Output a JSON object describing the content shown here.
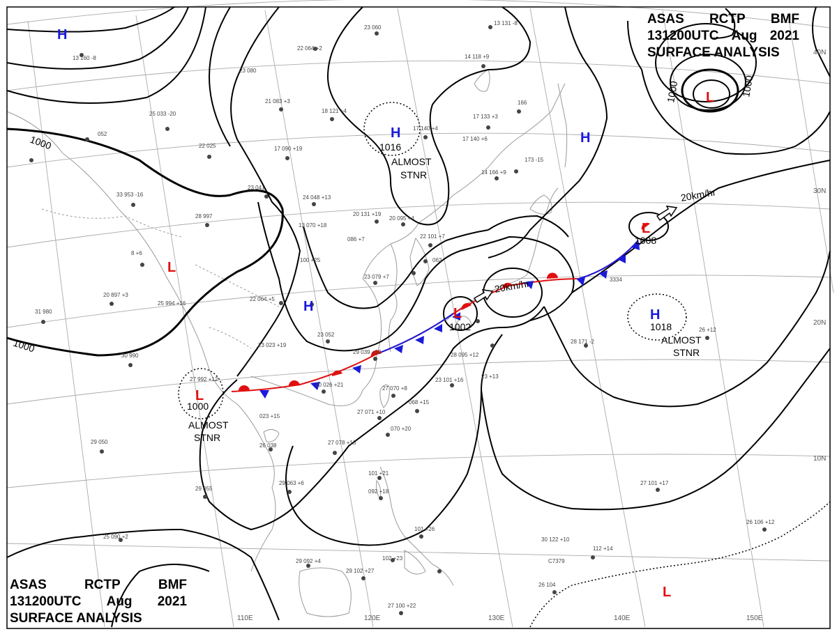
{
  "title": {
    "agency": "ASAS",
    "station": "RCTP",
    "office": "BMF",
    "time": "131200UTC",
    "month": "Aug",
    "year": "2021",
    "product": "SURFACE ANALYSIS"
  },
  "colors": {
    "high": "#1a1adb",
    "low": "#e01010",
    "front_cold": "#1a1adb",
    "front_warm": "#e01010",
    "isobar": "#000000",
    "coast": "#9a9a9a",
    "grid": "#aaaaaa"
  },
  "lon_labels": [
    "110E",
    "120E",
    "130E",
    "140E",
    "150E"
  ],
  "lat_labels": [
    "40N",
    "30N",
    "20N",
    "10N"
  ],
  "isobar_labels": [
    "1000",
    "1000",
    "1000",
    "1000",
    "1000"
  ],
  "pressure_centers": [
    {
      "type": "H",
      "label": "H"
    },
    {
      "type": "H",
      "label": "H"
    },
    {
      "type": "H",
      "label": "H"
    },
    {
      "type": "H",
      "label": "H",
      "value": "1016"
    },
    {
      "type": "H",
      "label": "H",
      "value": "1018"
    },
    {
      "type": "L",
      "label": "L"
    },
    {
      "type": "L",
      "label": "L"
    },
    {
      "type": "L",
      "label": "L",
      "value": "1008"
    },
    {
      "type": "L",
      "label": "L",
      "value": "1000"
    },
    {
      "type": "L",
      "label": "L",
      "value": "1002"
    },
    {
      "type": "L",
      "label": "L"
    }
  ],
  "annotations": {
    "almost_stnr": [
      "ALMOST",
      "STNR"
    ],
    "motion_1": "20km/hr",
    "motion_2": "20km/hr"
  },
  "stations": [
    "13 160 -8",
    "23 060",
    "22 064 +2",
    "13 131 -8",
    "23 080",
    "21 083 +3",
    "18 121 +4",
    "17 140 +4",
    "14 118 +9",
    "17 133 +3",
    "17 140 +6",
    "166",
    "14 166 +9",
    "173 -15",
    "25 033 -20",
    "052",
    "22 025",
    "17 090 +19",
    "23 041",
    "24 048 +13",
    "33 953 -16",
    "28 997",
    "13 070 +18",
    "20 131 +19",
    "20 095 +4",
    "22 101 +7",
    "086 +7",
    "8 +6",
    "100 +25",
    "23 079 +7",
    "062",
    "20 897 +3",
    "25 994 +16",
    "22 064 +5",
    "31 980",
    "30 990",
    "23 023 +19",
    "23 052",
    "29 039 +12",
    "20 026 +21",
    "27 070 +8",
    "3334",
    "28 095 +12",
    "23 101 +16",
    "23 +13",
    "28 171 -2",
    "26 +12",
    "27 992 +12",
    "023 +15",
    "27 071 +10",
    "068 +15",
    "070 +20",
    "26 038",
    "27 078 +16",
    "29 050",
    "29 063 +6",
    "29 055",
    "25 090 +2",
    "101 +21",
    "092 +18",
    "101 +26",
    "102 +23",
    "29 092 +4",
    "29 102 +27",
    "27 100 +22",
    "30 122 +10",
    "112 +14",
    "26 104",
    "27 101 +17",
    "26 106 +12",
    "C7379"
  ]
}
